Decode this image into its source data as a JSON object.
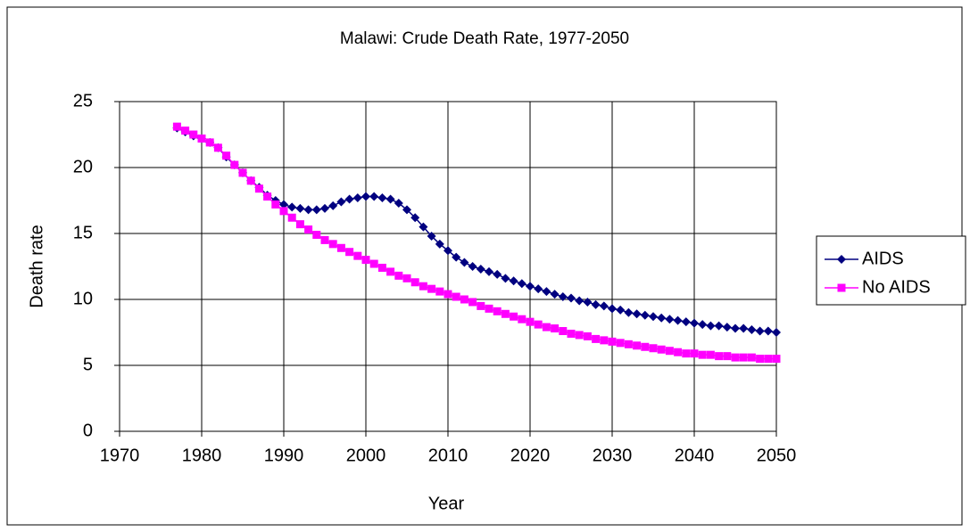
{
  "chart_data": {
    "type": "line",
    "title": "Malawi: Crude Death Rate, 1977-2050",
    "x_label": "Year",
    "y_label": "Death rate",
    "x": [
      1977,
      1978,
      1979,
      1980,
      1981,
      1982,
      1983,
      1984,
      1985,
      1986,
      1987,
      1988,
      1989,
      1990,
      1991,
      1992,
      1993,
      1994,
      1995,
      1996,
      1997,
      1998,
      1999,
      2000,
      2001,
      2002,
      2003,
      2004,
      2005,
      2006,
      2007,
      2008,
      2009,
      2010,
      2011,
      2012,
      2013,
      2014,
      2015,
      2016,
      2017,
      2018,
      2019,
      2020,
      2021,
      2022,
      2023,
      2024,
      2025,
      2026,
      2027,
      2028,
      2029,
      2030,
      2031,
      2032,
      2033,
      2034,
      2035,
      2036,
      2037,
      2038,
      2039,
      2040,
      2041,
      2042,
      2043,
      2044,
      2045,
      2046,
      2047,
      2048,
      2049,
      2050
    ],
    "series": [
      {
        "name": "AIDS",
        "color": "#000080",
        "marker": "diamond",
        "values": [
          23.0,
          22.7,
          22.4,
          22.2,
          21.9,
          21.5,
          20.8,
          20.2,
          19.6,
          19.0,
          18.5,
          17.9,
          17.5,
          17.2,
          17.0,
          16.9,
          16.8,
          16.8,
          16.9,
          17.1,
          17.4,
          17.6,
          17.7,
          17.8,
          17.8,
          17.7,
          17.6,
          17.3,
          16.8,
          16.2,
          15.5,
          14.8,
          14.2,
          13.7,
          13.2,
          12.8,
          12.5,
          12.3,
          12.1,
          11.9,
          11.6,
          11.4,
          11.2,
          11.0,
          10.8,
          10.6,
          10.4,
          10.2,
          10.1,
          9.9,
          9.8,
          9.6,
          9.5,
          9.3,
          9.2,
          9.0,
          8.9,
          8.8,
          8.7,
          8.6,
          8.5,
          8.4,
          8.3,
          8.2,
          8.1,
          8.0,
          8.0,
          7.9,
          7.8,
          7.8,
          7.7,
          7.6,
          7.6,
          7.5
        ]
      },
      {
        "name": "No AIDS",
        "color": "#ff00ff",
        "marker": "square",
        "values": [
          23.1,
          22.8,
          22.5,
          22.2,
          21.9,
          21.5,
          20.9,
          20.2,
          19.6,
          19.0,
          18.4,
          17.8,
          17.2,
          16.7,
          16.2,
          15.7,
          15.3,
          14.9,
          14.5,
          14.2,
          13.9,
          13.6,
          13.3,
          13.0,
          12.7,
          12.4,
          12.1,
          11.8,
          11.6,
          11.3,
          11.0,
          10.8,
          10.6,
          10.4,
          10.2,
          10.0,
          9.8,
          9.5,
          9.3,
          9.1,
          8.9,
          8.7,
          8.5,
          8.3,
          8.1,
          7.9,
          7.8,
          7.6,
          7.4,
          7.3,
          7.2,
          7.0,
          6.9,
          6.8,
          6.7,
          6.6,
          6.5,
          6.4,
          6.3,
          6.2,
          6.1,
          6.0,
          5.9,
          5.9,
          5.8,
          5.8,
          5.7,
          5.7,
          5.6,
          5.6,
          5.6,
          5.5,
          5.5,
          5.5
        ]
      }
    ],
    "xlim": [
      1970,
      2050
    ],
    "xticks": [
      1970,
      1980,
      1990,
      2000,
      2010,
      2020,
      2030,
      2040,
      2050
    ],
    "ylim": [
      0,
      25
    ],
    "yticks": [
      0,
      5,
      10,
      15,
      20,
      25
    ],
    "grid": true,
    "legend": "right"
  }
}
